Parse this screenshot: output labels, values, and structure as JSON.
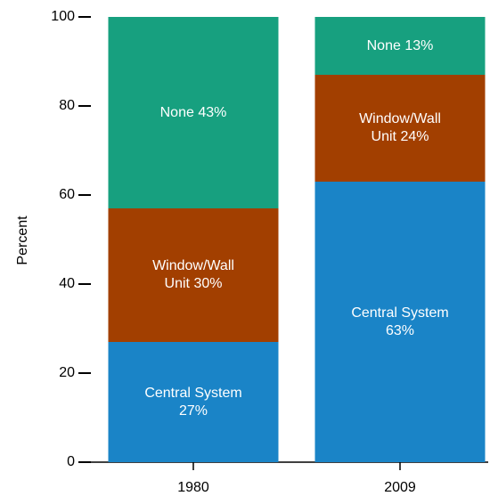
{
  "chart_data": {
    "type": "stacked_bar",
    "y_label": "Percent",
    "categories": [
      "1980",
      "2009"
    ],
    "series": [
      {
        "name": "Central System",
        "color": "#1a84c7",
        "values": [
          27,
          63
        ],
        "value_labels": [
          "27%",
          "63%"
        ]
      },
      {
        "name": "Window/Wall Unit",
        "color": "#a23f00",
        "values": [
          30,
          24
        ],
        "value_labels": [
          "30%",
          "24%"
        ]
      },
      {
        "name": "None",
        "color": "#17a07f",
        "values": [
          43,
          13
        ],
        "value_labels": [
          "43%",
          "13%"
        ]
      }
    ],
    "ylim": [
      0,
      100
    ],
    "yticks": [
      0,
      20,
      40,
      60,
      80,
      100
    ]
  }
}
